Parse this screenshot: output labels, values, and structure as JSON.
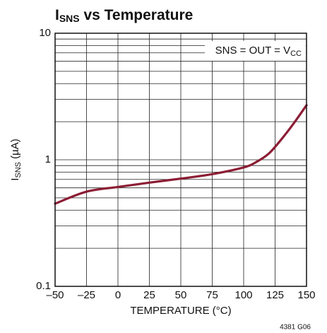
{
  "chart_data": {
    "type": "line",
    "title": [
      "I",
      "SNS",
      " vs Temperature"
    ],
    "ylabel": [
      "I",
      "SNS",
      " (µA)"
    ],
    "xlabel": "TEMPERATURE (°C)",
    "annotation": [
      "SNS = OUT = V",
      "CC"
    ],
    "footnote": "4381 G06",
    "x": [
      -50,
      -25,
      0,
      25,
      50,
      75,
      100,
      110,
      120,
      130,
      140,
      150
    ],
    "series": [
      {
        "name": "ISNS",
        "color": "#8c1d34",
        "values": [
          0.45,
          0.56,
          0.61,
          0.66,
          0.71,
          0.77,
          0.87,
          0.96,
          1.12,
          1.45,
          1.95,
          2.7
        ]
      }
    ],
    "xlim": [
      -50,
      150
    ],
    "xticks": [
      {
        "value": -50,
        "label": "–50"
      },
      {
        "value": -25,
        "label": "–25"
      },
      0,
      25,
      50,
      75,
      100,
      125,
      150
    ],
    "ylim": [
      0.1,
      10
    ],
    "yticks": [
      0.1,
      1,
      10
    ],
    "y_minor_ticks": [
      0.2,
      0.3,
      0.4,
      0.5,
      0.6,
      0.7,
      0.8,
      0.9,
      2,
      3,
      4,
      5,
      6,
      7,
      8,
      9
    ],
    "ylog": true,
    "grid": true
  }
}
